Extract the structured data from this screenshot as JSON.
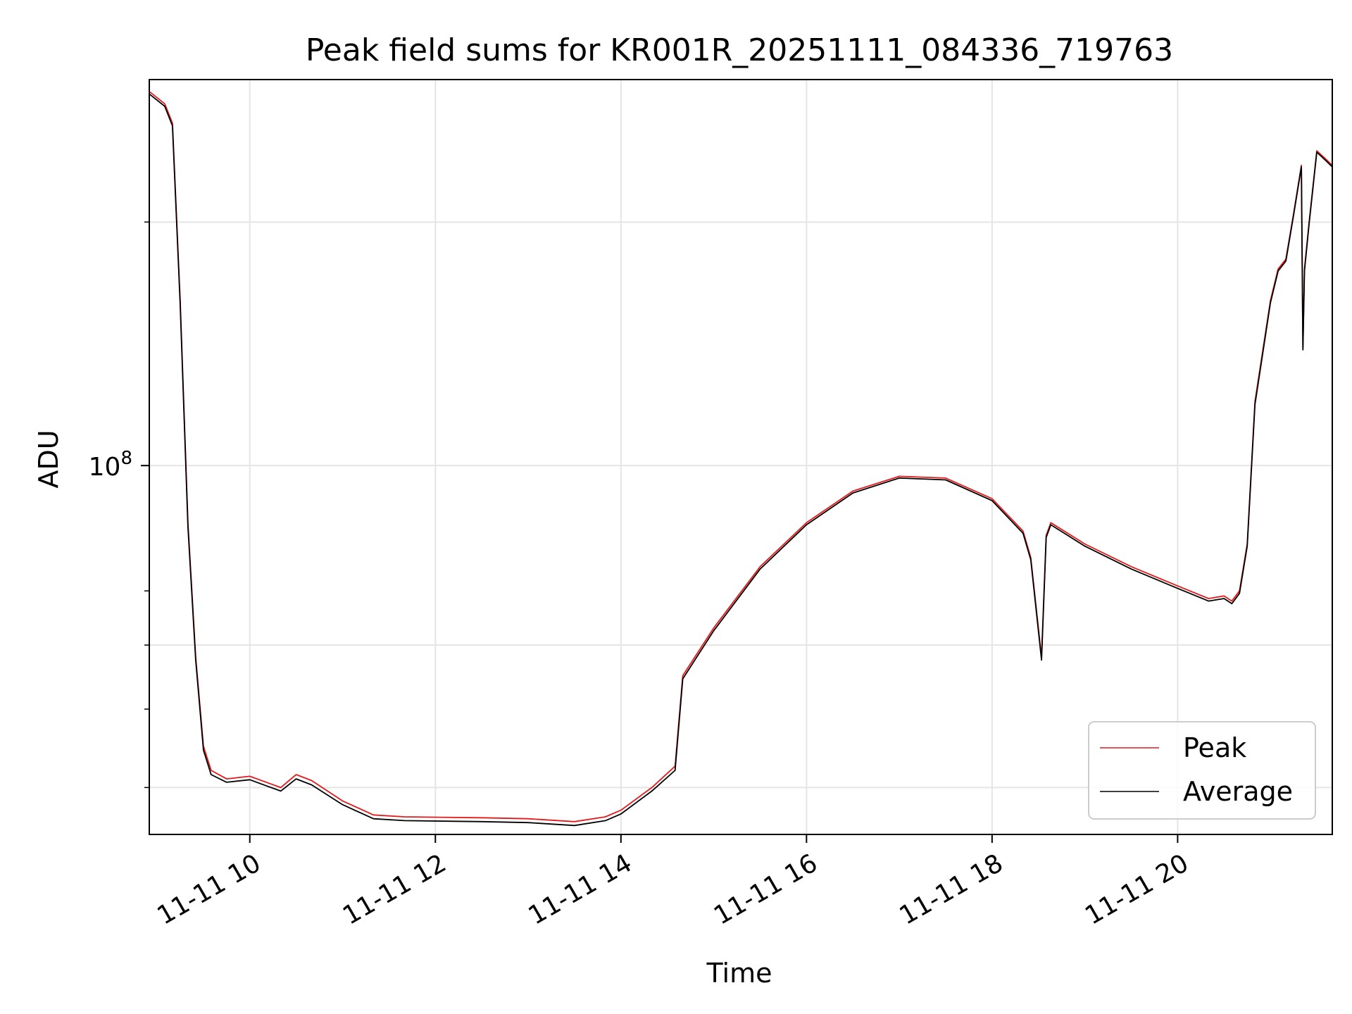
{
  "chart_data": {
    "type": "line",
    "title": "Peak field sums for KR001R_20251111_084336_719763",
    "xlabel": "Time",
    "ylabel": "ADU",
    "x_tick_labels": [
      "11-11 10",
      "11-11 12",
      "11-11 14",
      "11-11 16",
      "11-11 18",
      "11-11 20"
    ],
    "y_tick_label_base": "10",
    "y_tick_label_exp": "8",
    "y_scale": "log",
    "xlim": [
      "2025-11-11 08:55",
      "2025-11-11 21:40"
    ],
    "ylim": [
      35000000,
      300000000
    ],
    "grid": true,
    "legend_position": "lower-right",
    "colors": {
      "peak": "#e41a1c",
      "average": "#000000",
      "grid": "#e5e5e5"
    },
    "series": [
      {
        "name": "Peak",
        "x": [
          "2025-11-11 08:55",
          "2025-11-11 09:05",
          "2025-11-11 09:10",
          "2025-11-11 09:15",
          "2025-11-11 09:20",
          "2025-11-11 09:25",
          "2025-11-11 09:30",
          "2025-11-11 09:35",
          "2025-11-11 09:45",
          "2025-11-11 10:00",
          "2025-11-11 10:20",
          "2025-11-11 10:30",
          "2025-11-11 10:40",
          "2025-11-11 11:00",
          "2025-11-11 11:20",
          "2025-11-11 11:40",
          "2025-11-11 12:30",
          "2025-11-11 13:00",
          "2025-11-11 13:30",
          "2025-11-11 13:50",
          "2025-11-11 14:00",
          "2025-11-11 14:20",
          "2025-11-11 14:35",
          "2025-11-11 14:40",
          "2025-11-11 15:00",
          "2025-11-11 15:30",
          "2025-11-11 16:00",
          "2025-11-11 16:30",
          "2025-11-11 17:00",
          "2025-11-11 17:30",
          "2025-11-11 18:00",
          "2025-11-11 18:20",
          "2025-11-11 18:25",
          "2025-11-11 18:32",
          "2025-11-11 18:35",
          "2025-11-11 18:38",
          "2025-11-11 19:00",
          "2025-11-11 19:30",
          "2025-11-11 20:00",
          "2025-11-11 20:20",
          "2025-11-11 20:30",
          "2025-11-11 20:35",
          "2025-11-11 20:40",
          "2025-11-11 20:45",
          "2025-11-11 20:50",
          "2025-11-11 21:00",
          "2025-11-11 21:05",
          "2025-11-11 21:10",
          "2025-11-11 21:15",
          "2025-11-11 21:20",
          "2025-11-11 21:21",
          "2025-11-11 21:22",
          "2025-11-11 21:25",
          "2025-11-11 21:30",
          "2025-11-11 21:35",
          "2025-11-11 21:40"
        ],
        "y": [
          290000000,
          280000000,
          265000000,
          160000000,
          85000000,
          58000000,
          45000000,
          42000000,
          41000000,
          41300000,
          40000000,
          41500000,
          40800000,
          38500000,
          37000000,
          36800000,
          36700000,
          36600000,
          36300000,
          36800000,
          37500000,
          40000000,
          42500000,
          55000000,
          63000000,
          75000000,
          85000000,
          93000000,
          97000000,
          96500000,
          91000000,
          83000000,
          77000000,
          58000000,
          82000000,
          85000000,
          80000000,
          75000000,
          71000000,
          68500000,
          69000000,
          68000000,
          70000000,
          80000000,
          120000000,
          160000000,
          175000000,
          180000000,
          205000000,
          235000000,
          140000000,
          175000000,
          200000000,
          245000000,
          240000000,
          235000000
        ]
      },
      {
        "name": "Average",
        "x": [
          "2025-11-11 08:55",
          "2025-11-11 09:05",
          "2025-11-11 09:10",
          "2025-11-11 09:15",
          "2025-11-11 09:20",
          "2025-11-11 09:25",
          "2025-11-11 09:30",
          "2025-11-11 09:35",
          "2025-11-11 09:45",
          "2025-11-11 10:00",
          "2025-11-11 10:20",
          "2025-11-11 10:30",
          "2025-11-11 10:40",
          "2025-11-11 11:00",
          "2025-11-11 11:20",
          "2025-11-11 11:40",
          "2025-11-11 12:30",
          "2025-11-11 13:00",
          "2025-11-11 13:30",
          "2025-11-11 13:50",
          "2025-11-11 14:00",
          "2025-11-11 14:20",
          "2025-11-11 14:35",
          "2025-11-11 14:40",
          "2025-11-11 15:00",
          "2025-11-11 15:30",
          "2025-11-11 16:00",
          "2025-11-11 16:30",
          "2025-11-11 17:00",
          "2025-11-11 17:30",
          "2025-11-11 18:00",
          "2025-11-11 18:20",
          "2025-11-11 18:25",
          "2025-11-11 18:32",
          "2025-11-11 18:35",
          "2025-11-11 18:38",
          "2025-11-11 19:00",
          "2025-11-11 19:30",
          "2025-11-11 20:00",
          "2025-11-11 20:20",
          "2025-11-11 20:30",
          "2025-11-11 20:35",
          "2025-11-11 20:40",
          "2025-11-11 20:45",
          "2025-11-11 20:50",
          "2025-11-11 21:00",
          "2025-11-11 21:05",
          "2025-11-11 21:10",
          "2025-11-11 21:15",
          "2025-11-11 21:20",
          "2025-11-11 21:21",
          "2025-11-11 21:22",
          "2025-11-11 21:25",
          "2025-11-11 21:30",
          "2025-11-11 21:35",
          "2025-11-11 21:40"
        ],
        "y": [
          288000000,
          278000000,
          263000000,
          158000000,
          84000000,
          57500000,
          44500000,
          41500000,
          40600000,
          40900000,
          39600000,
          41000000,
          40300000,
          38100000,
          36600000,
          36400000,
          36300000,
          36200000,
          35900000,
          36400000,
          37100000,
          39600000,
          42000000,
          54500000,
          62500000,
          74500000,
          84500000,
          92500000,
          96500000,
          96000000,
          90500000,
          82500000,
          76500000,
          57500000,
          81500000,
          84500000,
          79500000,
          74500000,
          70500000,
          68000000,
          68500000,
          67500000,
          69500000,
          79500000,
          119000000,
          159000000,
          174000000,
          179000000,
          204000000,
          234000000,
          139000000,
          174000000,
          199000000,
          244000000,
          239000000,
          234000000
        ]
      }
    ]
  }
}
